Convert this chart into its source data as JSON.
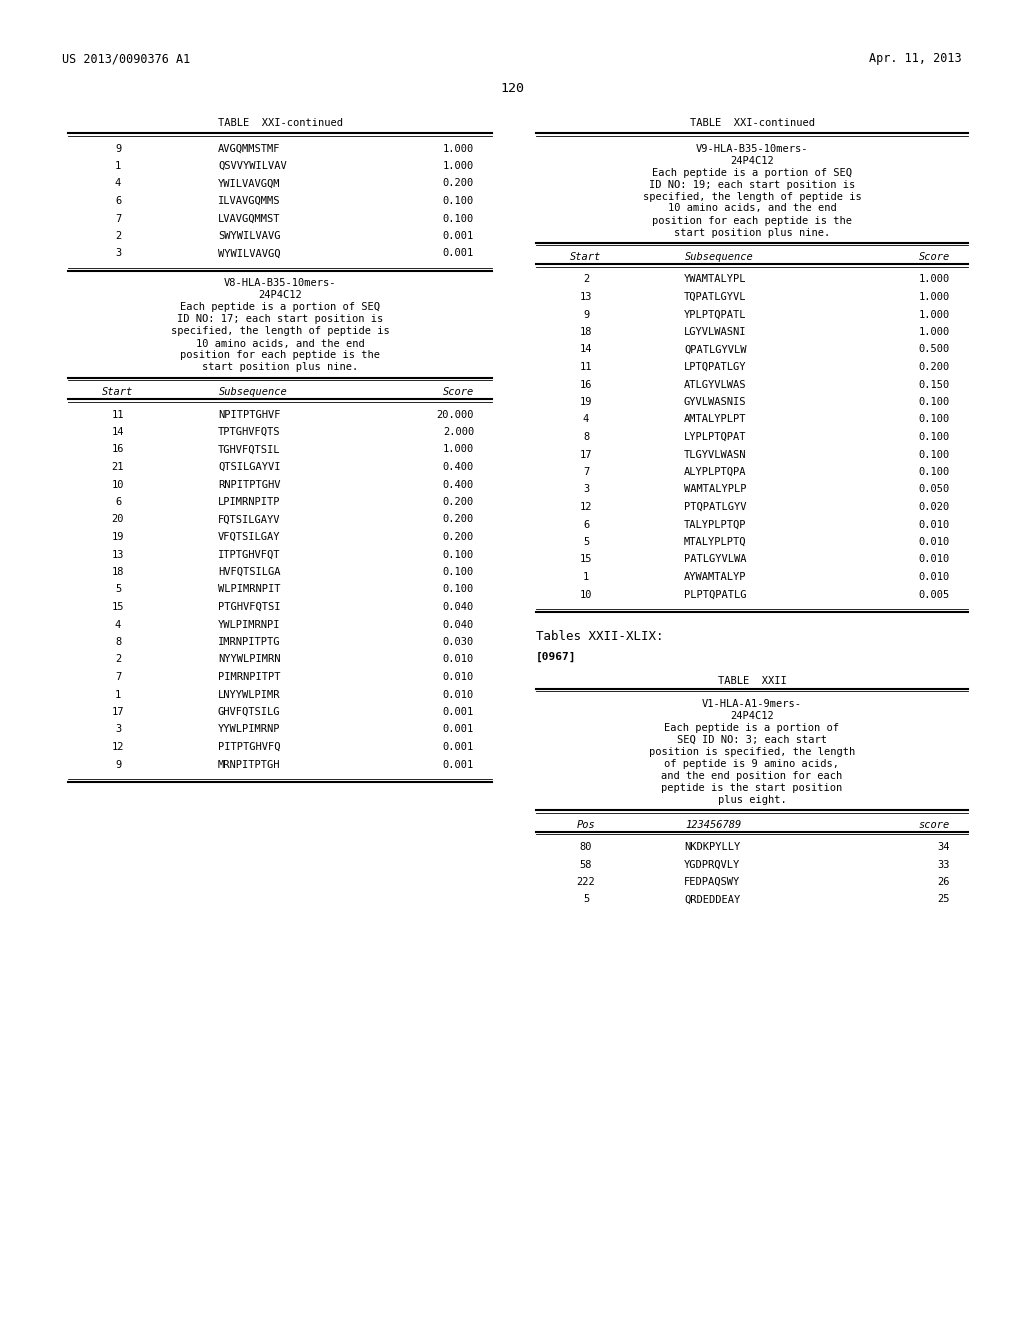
{
  "header_left": "US 2013/0090376 A1",
  "header_right": "Apr. 11, 2013",
  "page_number": "120",
  "bg_color": "#ffffff",
  "text_color": "#000000",
  "left_col": {
    "table_title_top": "TABLE  XXI-continued",
    "top_rows": [
      [
        "9",
        "AVGQMMSTMF",
        "1.000"
      ],
      [
        "1",
        "QSVVYWILVAV",
        "1.000"
      ],
      [
        "4",
        "YWILVAVGQM",
        "0.200"
      ],
      [
        "6",
        "ILVAVGQMMS",
        "0.100"
      ],
      [
        "7",
        "LVAVGQMMST",
        "0.100"
      ],
      [
        "2",
        "SWYWILVAVG",
        "0.001"
      ],
      [
        "3",
        "WYWILVAVGQ",
        "0.001"
      ]
    ],
    "section_title": [
      "V8-HLA-B35-10mers-",
      "24P4C12",
      "Each peptide is a portion of SEQ",
      "ID NO: 17; each start position is",
      "specified, the length of peptide is",
      "10 amino acids, and the end",
      "position for each peptide is the",
      "start position plus nine."
    ],
    "col_headers": [
      "Start",
      "Subsequence",
      "Score"
    ],
    "main_rows": [
      [
        "11",
        "NPITPTGHVF",
        "20.000"
      ],
      [
        "14",
        "TPTGHVFQTS",
        "2.000"
      ],
      [
        "16",
        "TGHVFQTSIL",
        "1.000"
      ],
      [
        "21",
        "QTSILGAYVI",
        "0.400"
      ],
      [
        "10",
        "RNPITPTGHV",
        "0.400"
      ],
      [
        "6",
        "LPIMRNPITP",
        "0.200"
      ],
      [
        "20",
        "FQTSILGAYV",
        "0.200"
      ],
      [
        "19",
        "VFQTSILGAY",
        "0.200"
      ],
      [
        "13",
        "ITPTGHVFQT",
        "0.100"
      ],
      [
        "18",
        "HVFQTSILGA",
        "0.100"
      ],
      [
        "5",
        "WLPIMRNPIT",
        "0.100"
      ],
      [
        "15",
        "PTGHVFQTSI",
        "0.040"
      ],
      [
        "4",
        "YWLPIMRNPI",
        "0.040"
      ],
      [
        "8",
        "IMRNPITPTG",
        "0.030"
      ],
      [
        "2",
        "NYYWLPIMRN",
        "0.010"
      ],
      [
        "7",
        "PIMRNPITPT",
        "0.010"
      ],
      [
        "1",
        "LNYYWLPIMR",
        "0.010"
      ],
      [
        "17",
        "GHVFQTSILG",
        "0.001"
      ],
      [
        "3",
        "YYWLPIMRNP",
        "0.001"
      ],
      [
        "12",
        "PITPTGHVFQ",
        "0.001"
      ],
      [
        "9",
        "MRNPITPTGH",
        "0.001"
      ]
    ]
  },
  "right_col": {
    "table_title_top": "TABLE  XXI-continued",
    "section_title": [
      "V9-HLA-B35-10mers-",
      "24P4C12",
      "Each peptide is a portion of SEQ",
      "ID NO: 19; each start position is",
      "specified, the length of peptide is",
      "10 amino acids, and the end",
      "position for each peptide is the",
      "start position plus nine."
    ],
    "col_headers": [
      "Start",
      "Subsequence",
      "Score"
    ],
    "main_rows": [
      [
        "2",
        "YWAMTALYPL",
        "1.000"
      ],
      [
        "13",
        "TQPATLGYVL",
        "1.000"
      ],
      [
        "9",
        "YPLPTQPATL",
        "1.000"
      ],
      [
        "18",
        "LGYVLWASNI",
        "1.000"
      ],
      [
        "14",
        "QPATLGYVLW",
        "0.500"
      ],
      [
        "11",
        "LPTQPATLGY",
        "0.200"
      ],
      [
        "16",
        "ATLGYVLWAS",
        "0.150"
      ],
      [
        "19",
        "GYVLWASNIS",
        "0.100"
      ],
      [
        "4",
        "AMTALYPLPT",
        "0.100"
      ],
      [
        "8",
        "LYPLPTQPAT",
        "0.100"
      ],
      [
        "17",
        "TLGYVLWASN",
        "0.100"
      ],
      [
        "7",
        "ALYPLPTQPA",
        "0.100"
      ],
      [
        "3",
        "WAMTALYPLP",
        "0.050"
      ],
      [
        "12",
        "PTQPATLGYV",
        "0.020"
      ],
      [
        "6",
        "TALYPLPTQP",
        "0.010"
      ],
      [
        "5",
        "MTALYPLPTQ",
        "0.010"
      ],
      [
        "15",
        "PATLGYVLWA",
        "0.010"
      ],
      [
        "1",
        "AYWAMTALYP",
        "0.010"
      ],
      [
        "10",
        "PLPTQPATLG",
        "0.005"
      ]
    ],
    "tables_xxii_text": "Tables XXII-XLIX:",
    "ref_text": "[0967]",
    "table_xxii_title": "TABLE  XXII",
    "table_xxii_section": [
      "V1-HLA-A1-9mers-",
      "24P4C12",
      "Each peptide is a portion of",
      "SEQ ID NO: 3; each start",
      "position is specified, the length",
      "of peptide is 9 amino acids,",
      "and the end position for each",
      "peptide is the start position",
      "plus eight."
    ],
    "table_xxii_headers": [
      "Pos",
      "123456789",
      "score"
    ],
    "table_xxii_rows": [
      [
        "80",
        "NKDKPYLLY",
        "34"
      ],
      [
        "58",
        "YGDPRQVLY",
        "33"
      ],
      [
        "222",
        "FEDPAQSWY",
        "26"
      ],
      [
        "5",
        "QRDEDDEAY",
        "25"
      ]
    ]
  }
}
